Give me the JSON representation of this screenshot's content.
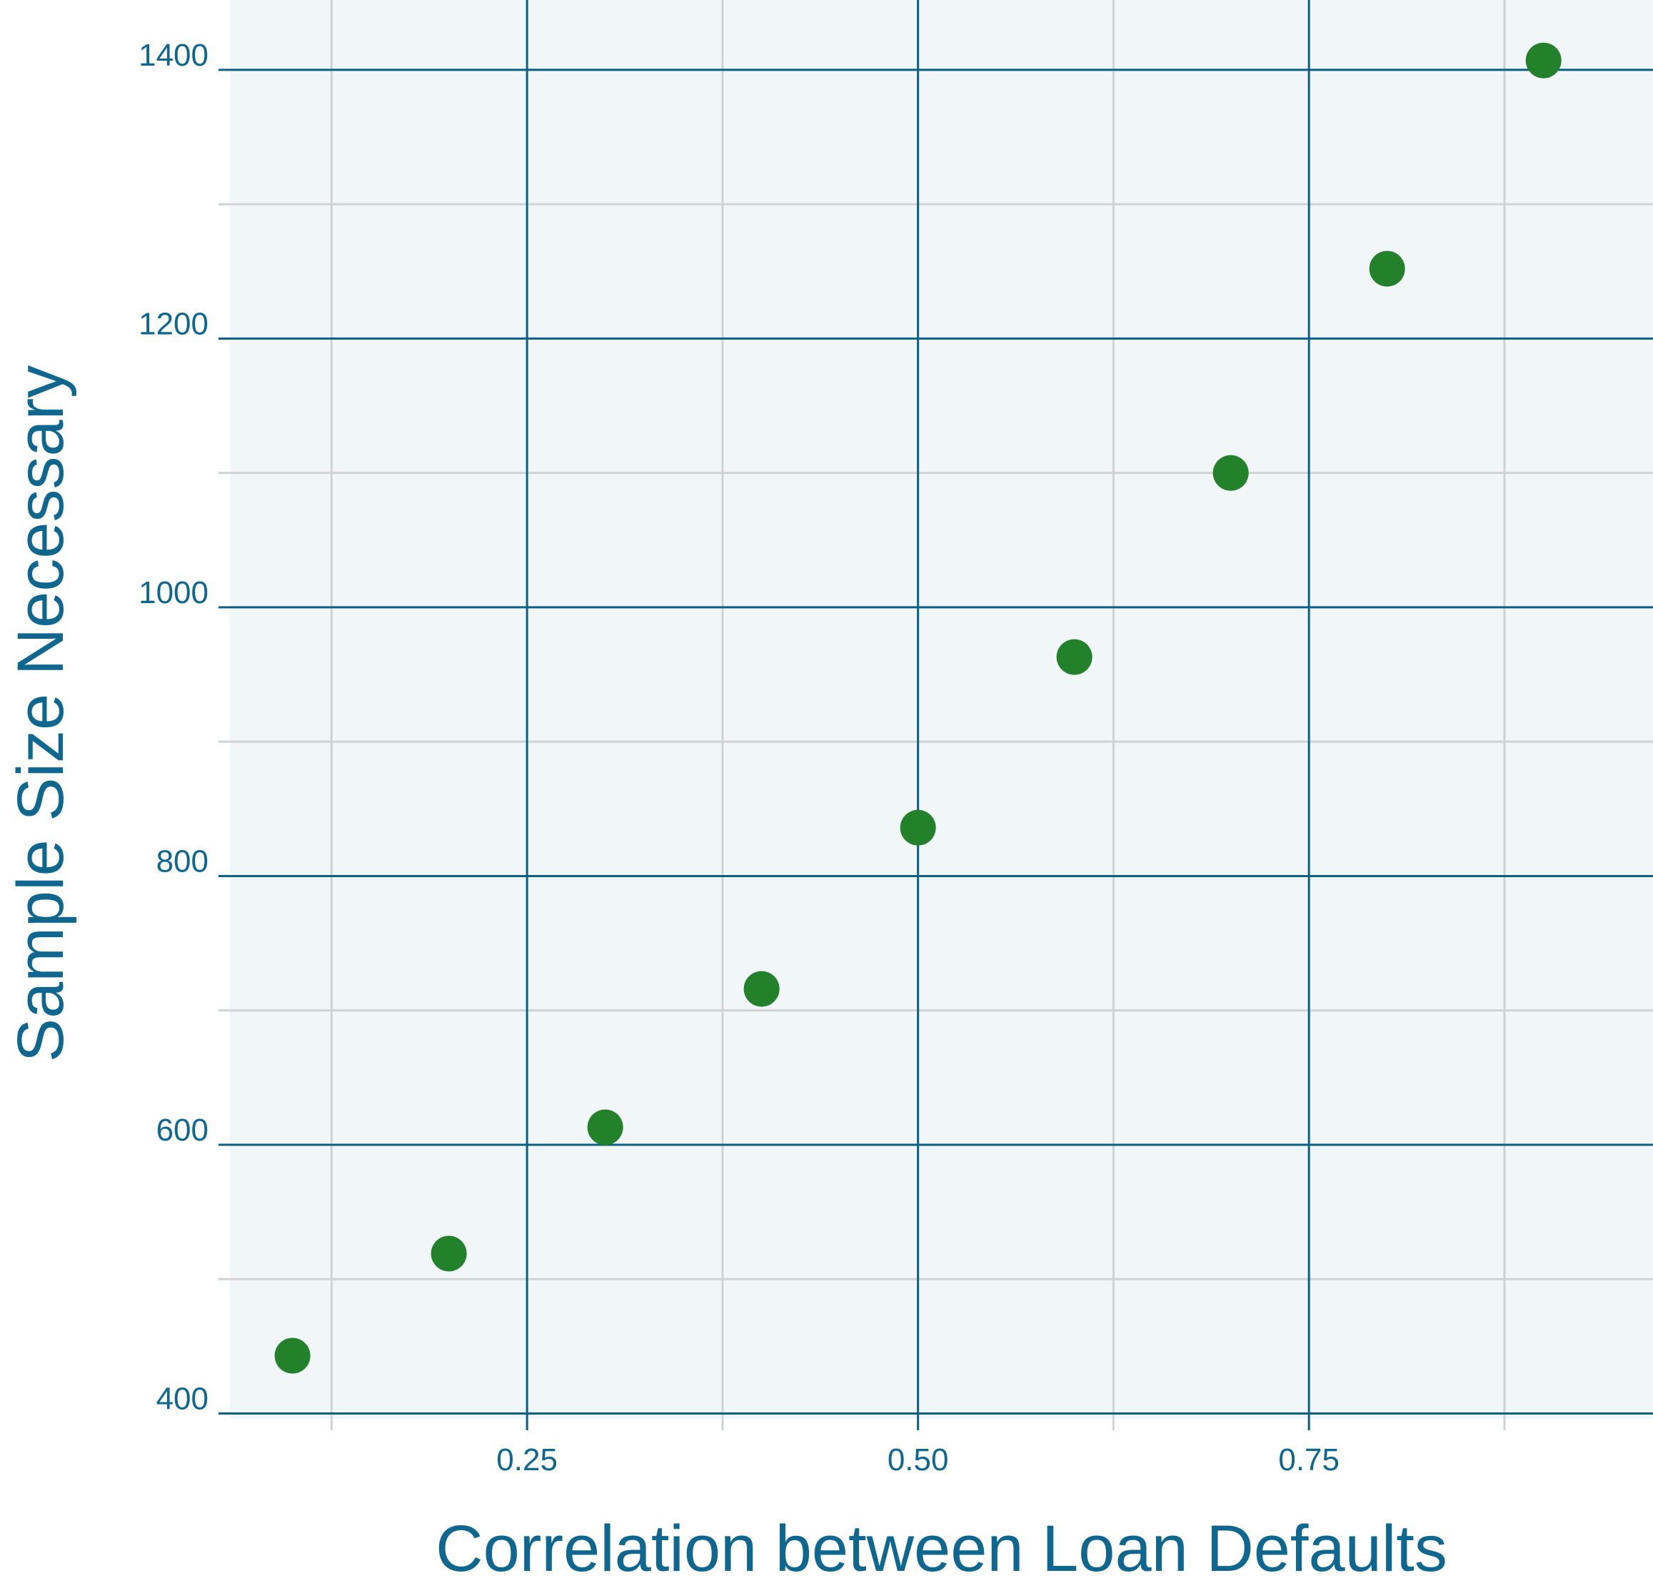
{
  "chart_data": {
    "type": "scatter",
    "title": "",
    "xlabel": "Correlation between Loan Defaults",
    "ylabel": "Sample Size Necessary",
    "x": [
      0.1,
      0.2,
      0.3,
      0.4,
      0.5,
      0.6,
      0.7,
      0.8,
      0.9
    ],
    "y": [
      443,
      519,
      613,
      716,
      836,
      963,
      1100,
      1252,
      1407
    ],
    "xlim": [
      0.06,
      0.97
    ],
    "ylim": [
      396,
      1452
    ],
    "x_ticks": [
      0.25,
      0.5,
      0.75
    ],
    "x_tick_labels": [
      "0.25",
      "0.50",
      "0.75"
    ],
    "x_minor_ticks": [
      0.125,
      0.375,
      0.625,
      0.875
    ],
    "y_ticks": [
      400,
      600,
      800,
      1000,
      1200,
      1400
    ],
    "y_tick_labels": [
      "400",
      "600",
      "800",
      "1000",
      "1200",
      "1400"
    ],
    "y_minor_ticks": [
      500,
      700,
      900,
      1100,
      1300
    ],
    "grid": true,
    "legend": "none",
    "colors": {
      "points": "#23812b",
      "text": "#0f6790",
      "major_grid": "#0b5e84",
      "minor_grid": "#cfd3d6",
      "plot_background": "#f1f6f9"
    }
  }
}
